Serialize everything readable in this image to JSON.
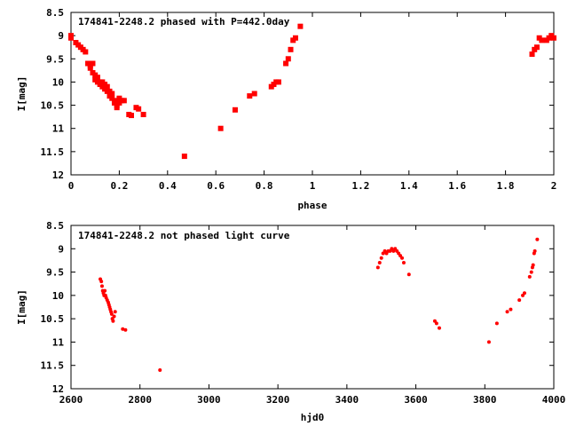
{
  "chart_data": [
    {
      "type": "scatter",
      "title": "174841-2248.2 phased with P=442.0day",
      "xlabel": "phase",
      "ylabel": "I[mag]",
      "xlim": [
        0,
        2
      ],
      "ylim": [
        12,
        8.5
      ],
      "y_inverted": true,
      "grid": false,
      "marker_color": "#ff0000",
      "x_ticks": [
        "0",
        "0.2",
        "0.4",
        "0.6",
        "0.8",
        "1",
        "1.2",
        "1.4",
        "1.6",
        "1.8",
        "2"
      ],
      "y_ticks": [
        "8.5",
        "9",
        "9.5",
        "10",
        "10.5",
        "11",
        "11.5",
        "12"
      ],
      "series": [
        {
          "points": [
            [
              0.0,
              9.0
            ],
            [
              0.0,
              9.05
            ],
            [
              0.02,
              9.15
            ],
            [
              0.03,
              9.2
            ],
            [
              0.04,
              9.25
            ],
            [
              0.05,
              9.3
            ],
            [
              0.06,
              9.35
            ],
            [
              0.07,
              9.6
            ],
            [
              0.08,
              9.65
            ],
            [
              0.08,
              9.7
            ],
            [
              0.09,
              9.6
            ],
            [
              0.09,
              9.8
            ],
            [
              0.1,
              9.85
            ],
            [
              0.1,
              9.95
            ],
            [
              0.11,
              9.9
            ],
            [
              0.11,
              10.0
            ],
            [
              0.12,
              10.0
            ],
            [
              0.12,
              10.05
            ],
            [
              0.13,
              10.0
            ],
            [
              0.13,
              10.1
            ],
            [
              0.14,
              10.05
            ],
            [
              0.14,
              10.15
            ],
            [
              0.15,
              10.1
            ],
            [
              0.15,
              10.2
            ],
            [
              0.16,
              10.2
            ],
            [
              0.16,
              10.3
            ],
            [
              0.17,
              10.25
            ],
            [
              0.17,
              10.35
            ],
            [
              0.18,
              10.4
            ],
            [
              0.18,
              10.45
            ],
            [
              0.19,
              10.5
            ],
            [
              0.19,
              10.55
            ],
            [
              0.2,
              10.45
            ],
            [
              0.2,
              10.35
            ],
            [
              0.21,
              10.4
            ],
            [
              0.22,
              10.4
            ],
            [
              0.24,
              10.7
            ],
            [
              0.25,
              10.72
            ],
            [
              0.27,
              10.55
            ],
            [
              0.28,
              10.58
            ],
            [
              0.3,
              10.7
            ],
            [
              0.47,
              11.6
            ],
            [
              0.62,
              11.0
            ],
            [
              0.68,
              10.6
            ],
            [
              0.74,
              10.3
            ],
            [
              0.76,
              10.25
            ],
            [
              0.83,
              10.1
            ],
            [
              0.84,
              10.05
            ],
            [
              0.85,
              10.0
            ],
            [
              0.86,
              10.0
            ],
            [
              0.89,
              9.6
            ],
            [
              0.9,
              9.5
            ],
            [
              0.91,
              9.3
            ],
            [
              0.92,
              9.1
            ],
            [
              0.93,
              9.05
            ],
            [
              0.95,
              8.8
            ],
            [
              1.91,
              9.4
            ],
            [
              1.92,
              9.3
            ],
            [
              1.93,
              9.25
            ],
            [
              1.94,
              9.05
            ],
            [
              1.95,
              9.1
            ],
            [
              1.97,
              9.1
            ],
            [
              1.98,
              9.05
            ],
            [
              1.99,
              9.0
            ],
            [
              2.0,
              9.05
            ]
          ]
        }
      ]
    },
    {
      "type": "scatter",
      "title": "174841-2248.2 not phased light curve",
      "xlabel": "hjd0",
      "ylabel": "I[mag]",
      "xlim": [
        2600,
        4000
      ],
      "ylim": [
        12,
        8.5
      ],
      "y_inverted": true,
      "grid": false,
      "marker_color": "#ff0000",
      "x_ticks": [
        "2600",
        "2800",
        "3000",
        "3200",
        "3400",
        "3600",
        "3800",
        "4000"
      ],
      "y_ticks": [
        "8.5",
        "9",
        "9.5",
        "10",
        "10.5",
        "11",
        "11.5",
        "12"
      ],
      "series": [
        {
          "points": [
            [
              2685,
              9.65
            ],
            [
              2688,
              9.7
            ],
            [
              2690,
              9.8
            ],
            [
              2692,
              9.9
            ],
            [
              2694,
              9.95
            ],
            [
              2696,
              10.0
            ],
            [
              2698,
              9.9
            ],
            [
              2700,
              10.0
            ],
            [
              2702,
              10.05
            ],
            [
              2705,
              10.1
            ],
            [
              2708,
              10.15
            ],
            [
              2710,
              10.2
            ],
            [
              2712,
              10.25
            ],
            [
              2714,
              10.3
            ],
            [
              2716,
              10.35
            ],
            [
              2718,
              10.4
            ],
            [
              2720,
              10.5
            ],
            [
              2722,
              10.55
            ],
            [
              2725,
              10.45
            ],
            [
              2728,
              10.35
            ],
            [
              2750,
              10.72
            ],
            [
              2758,
              10.74
            ],
            [
              2858,
              11.6
            ],
            [
              3490,
              9.4
            ],
            [
              3495,
              9.3
            ],
            [
              3500,
              9.2
            ],
            [
              3505,
              9.1
            ],
            [
              3510,
              9.05
            ],
            [
              3515,
              9.1
            ],
            [
              3520,
              9.05
            ],
            [
              3525,
              9.05
            ],
            [
              3530,
              9.0
            ],
            [
              3535,
              9.05
            ],
            [
              3540,
              9.0
            ],
            [
              3545,
              9.05
            ],
            [
              3550,
              9.1
            ],
            [
              3555,
              9.15
            ],
            [
              3560,
              9.2
            ],
            [
              3565,
              9.3
            ],
            [
              3580,
              9.55
            ],
            [
              3655,
              10.55
            ],
            [
              3660,
              10.6
            ],
            [
              3668,
              10.7
            ],
            [
              3812,
              11.0
            ],
            [
              3835,
              10.6
            ],
            [
              3865,
              10.35
            ],
            [
              3875,
              10.3
            ],
            [
              3900,
              10.1
            ],
            [
              3910,
              10.0
            ],
            [
              3915,
              9.95
            ],
            [
              3930,
              9.6
            ],
            [
              3935,
              9.5
            ],
            [
              3938,
              9.4
            ],
            [
              3940,
              9.35
            ],
            [
              3943,
              9.1
            ],
            [
              3945,
              9.05
            ],
            [
              3952,
              8.8
            ]
          ]
        }
      ]
    }
  ]
}
